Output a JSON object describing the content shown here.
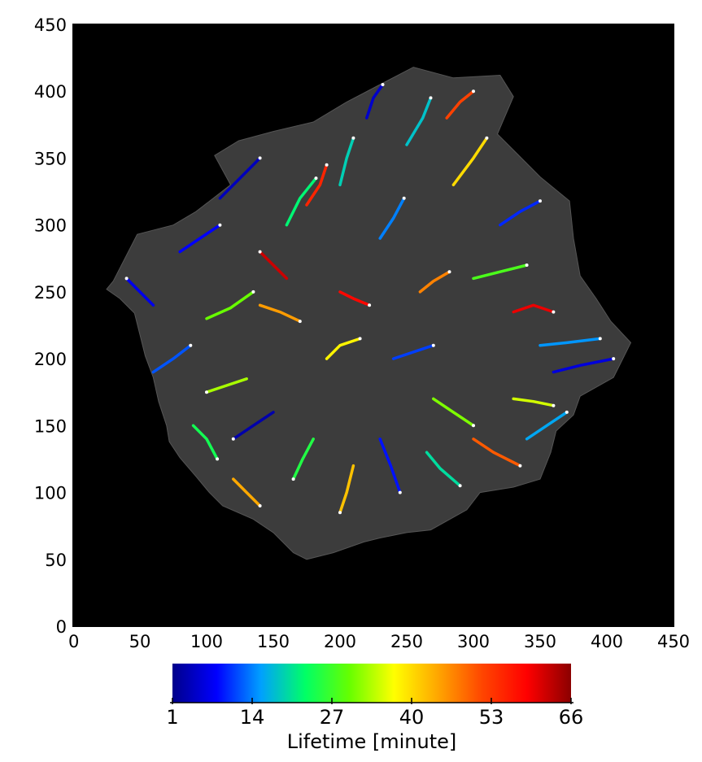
{
  "chart_data": {
    "type": "scatter",
    "title": "",
    "xlabel": "",
    "ylabel": "",
    "xlim": [
      0,
      450
    ],
    "ylim": [
      0,
      450
    ],
    "x_ticks": [
      0,
      50,
      100,
      150,
      200,
      250,
      300,
      350,
      400,
      450
    ],
    "y_ticks": [
      0,
      50,
      100,
      150,
      200,
      250,
      300,
      350,
      400,
      450
    ],
    "x_tick_labels": [
      "0",
      "50",
      "100",
      "150",
      "200",
      "250",
      "300",
      "350",
      "400",
      "450"
    ],
    "y_tick_labels": [
      "0",
      "50",
      "100",
      "150",
      "200",
      "250",
      "300",
      "350",
      "400",
      "450"
    ],
    "background": "#000000",
    "cell_fill": "#3c3c3c",
    "grid": false,
    "cell_outline": [
      [
        30,
        258
      ],
      [
        48,
        293
      ],
      [
        75,
        300
      ],
      [
        92,
        310
      ],
      [
        118,
        330
      ],
      [
        106,
        352
      ],
      [
        124,
        363
      ],
      [
        150,
        370
      ],
      [
        180,
        377
      ],
      [
        205,
        392
      ],
      [
        230,
        405
      ],
      [
        255,
        418
      ],
      [
        285,
        410
      ],
      [
        320,
        412
      ],
      [
        330,
        396
      ],
      [
        318,
        368
      ],
      [
        350,
        336
      ],
      [
        372,
        318
      ],
      [
        375,
        290
      ],
      [
        380,
        262
      ],
      [
        392,
        245
      ],
      [
        403,
        228
      ],
      [
        418,
        212
      ],
      [
        405,
        186
      ],
      [
        380,
        172
      ],
      [
        375,
        158
      ],
      [
        362,
        146
      ],
      [
        358,
        130
      ],
      [
        350,
        110
      ],
      [
        330,
        104
      ],
      [
        305,
        100
      ],
      [
        295,
        87
      ],
      [
        268,
        72
      ],
      [
        250,
        70
      ],
      [
        230,
        66
      ],
      [
        218,
        63
      ],
      [
        195,
        55
      ],
      [
        175,
        50
      ],
      [
        165,
        55
      ],
      [
        150,
        70
      ],
      [
        135,
        80
      ],
      [
        112,
        90
      ],
      [
        102,
        100
      ],
      [
        92,
        112
      ],
      [
        80,
        126
      ],
      [
        72,
        138
      ],
      [
        70,
        150
      ],
      [
        64,
        168
      ],
      [
        60,
        186
      ],
      [
        54,
        202
      ],
      [
        50,
        218
      ],
      [
        46,
        234
      ],
      [
        35,
        245
      ],
      [
        25,
        252
      ],
      [
        30,
        258
      ]
    ],
    "colorbar": {
      "label": "Lifetime [minute]",
      "min": 1,
      "max": 66,
      "ticks": [
        1,
        14,
        27,
        40,
        53,
        66
      ],
      "tick_labels": [
        "1",
        "14",
        "27",
        "40",
        "53",
        "66"
      ],
      "colors": [
        "#00008b",
        "#0000ff",
        "#00a0ff",
        "#00ff66",
        "#66ff00",
        "#ffff00",
        "#ffa500",
        "#ff4500",
        "#ff0000",
        "#8b0000"
      ]
    },
    "series": [
      {
        "tracks": [
          {
            "lifetime": 12,
            "points": [
              [
                60,
                190
              ],
              [
                75,
                200
              ],
              [
                88,
                210
              ]
            ]
          },
          {
            "lifetime": 30,
            "points": [
              [
                100,
                230
              ],
              [
                118,
                238
              ],
              [
                135,
                250
              ]
            ]
          },
          {
            "lifetime": 45,
            "points": [
              [
                140,
                240
              ],
              [
                155,
                235
              ],
              [
                170,
                228
              ]
            ]
          },
          {
            "lifetime": 8,
            "points": [
              [
                80,
                280
              ],
              [
                95,
                290
              ],
              [
                110,
                300
              ]
            ]
          },
          {
            "lifetime": 22,
            "points": [
              [
                160,
                300
              ],
              [
                170,
                320
              ],
              [
                182,
                335
              ]
            ]
          },
          {
            "lifetime": 55,
            "points": [
              [
                175,
                315
              ],
              [
                185,
                330
              ],
              [
                190,
                345
              ]
            ]
          },
          {
            "lifetime": 5,
            "points": [
              [
                220,
                380
              ],
              [
                225,
                395
              ],
              [
                232,
                405
              ]
            ]
          },
          {
            "lifetime": 18,
            "points": [
              [
                250,
                360
              ],
              [
                262,
                380
              ],
              [
                268,
                395
              ]
            ]
          },
          {
            "lifetime": 40,
            "points": [
              [
                285,
                330
              ],
              [
                300,
                350
              ],
              [
                310,
                365
              ]
            ]
          },
          {
            "lifetime": 10,
            "points": [
              [
                320,
                300
              ],
              [
                335,
                310
              ],
              [
                350,
                318
              ]
            ]
          },
          {
            "lifetime": 28,
            "points": [
              [
                300,
                260
              ],
              [
                320,
                265
              ],
              [
                340,
                270
              ]
            ]
          },
          {
            "lifetime": 60,
            "points": [
              [
                330,
                235
              ],
              [
                345,
                240
              ],
              [
                360,
                235
              ]
            ]
          },
          {
            "lifetime": 15,
            "points": [
              [
                350,
                210
              ],
              [
                370,
                212
              ],
              [
                395,
                215
              ]
            ]
          },
          {
            "lifetime": 6,
            "points": [
              [
                360,
                190
              ],
              [
                380,
                195
              ],
              [
                405,
                200
              ]
            ]
          },
          {
            "lifetime": 35,
            "points": [
              [
                330,
                170
              ],
              [
                345,
                168
              ],
              [
                360,
                165
              ]
            ]
          },
          {
            "lifetime": 50,
            "points": [
              [
                300,
                140
              ],
              [
                315,
                130
              ],
              [
                335,
                120
              ]
            ]
          },
          {
            "lifetime": 20,
            "points": [
              [
                265,
                130
              ],
              [
                275,
                118
              ],
              [
                290,
                105
              ]
            ]
          },
          {
            "lifetime": 9,
            "points": [
              [
                230,
                140
              ],
              [
                238,
                120
              ],
              [
                245,
                100
              ]
            ]
          },
          {
            "lifetime": 42,
            "points": [
              [
                210,
                120
              ],
              [
                205,
                100
              ],
              [
                200,
                85
              ]
            ]
          },
          {
            "lifetime": 25,
            "points": [
              [
                180,
                140
              ],
              [
                172,
                125
              ],
              [
                165,
                110
              ]
            ]
          },
          {
            "lifetime": 3,
            "points": [
              [
                150,
                160
              ],
              [
                135,
                150
              ],
              [
                120,
                140
              ]
            ]
          },
          {
            "lifetime": 33,
            "points": [
              [
                130,
                185
              ],
              [
                115,
                180
              ],
              [
                100,
                175
              ]
            ]
          },
          {
            "lifetime": 58,
            "points": [
              [
                200,
                250
              ],
              [
                210,
                245
              ],
              [
                222,
                240
              ]
            ]
          },
          {
            "lifetime": 14,
            "points": [
              [
                230,
                290
              ],
              [
                240,
                305
              ],
              [
                248,
                320
              ]
            ]
          },
          {
            "lifetime": 47,
            "points": [
              [
                260,
                250
              ],
              [
                270,
                258
              ],
              [
                282,
                265
              ]
            ]
          },
          {
            "lifetime": 11,
            "points": [
              [
                240,
                200
              ],
              [
                255,
                205
              ],
              [
                270,
                210
              ]
            ]
          },
          {
            "lifetime": 38,
            "points": [
              [
                190,
                200
              ],
              [
                200,
                210
              ],
              [
                215,
                215
              ]
            ]
          },
          {
            "lifetime": 24,
            "points": [
              [
                90,
                150
              ],
              [
                100,
                140
              ],
              [
                108,
                125
              ]
            ]
          },
          {
            "lifetime": 4,
            "points": [
              [
                110,
                320
              ],
              [
                125,
                335
              ],
              [
                140,
                350
              ]
            ]
          },
          {
            "lifetime": 52,
            "points": [
              [
                280,
                380
              ],
              [
                290,
                392
              ],
              [
                300,
                400
              ]
            ]
          },
          {
            "lifetime": 16,
            "points": [
              [
                340,
                140
              ],
              [
                355,
                150
              ],
              [
                370,
                160
              ]
            ]
          },
          {
            "lifetime": 31,
            "points": [
              [
                270,
                170
              ],
              [
                285,
                160
              ],
              [
                300,
                150
              ]
            ]
          },
          {
            "lifetime": 7,
            "points": [
              [
                60,
                240
              ],
              [
                50,
                250
              ],
              [
                40,
                260
              ]
            ]
          },
          {
            "lifetime": 44,
            "points": [
              [
                120,
                110
              ],
              [
                130,
                100
              ],
              [
                140,
                90
              ]
            ]
          },
          {
            "lifetime": 19,
            "points": [
              [
                200,
                330
              ],
              [
                205,
                350
              ],
              [
                210,
                365
              ]
            ]
          },
          {
            "lifetime": 62,
            "points": [
              [
                160,
                260
              ],
              [
                150,
                270
              ],
              [
                140,
                280
              ]
            ]
          }
        ]
      }
    ]
  }
}
